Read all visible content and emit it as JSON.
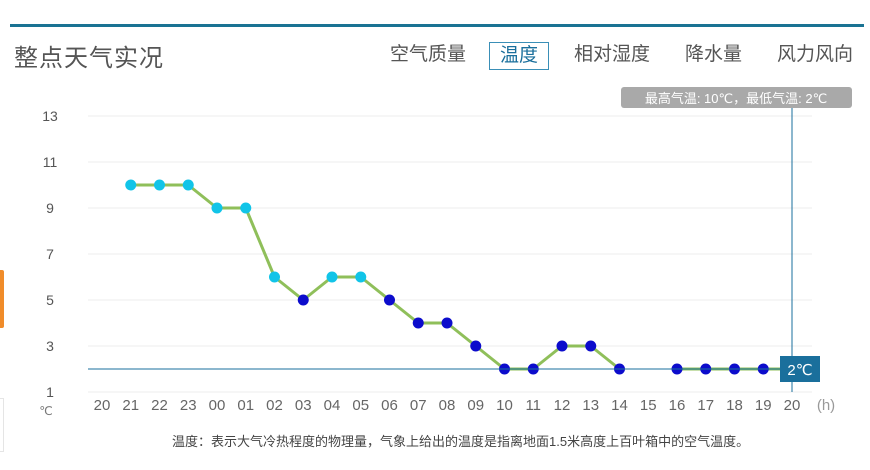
{
  "header": {
    "title": "整点天气实况",
    "tabs": [
      {
        "label": "空气质量",
        "active": false
      },
      {
        "label": "温度",
        "active": true
      },
      {
        "label": "相对湿度",
        "active": false
      },
      {
        "label": "降水量",
        "active": false
      },
      {
        "label": "风力风向",
        "active": false
      }
    ]
  },
  "chart_data": {
    "type": "line",
    "unit_label": "℃",
    "x_unit_label": "(h)",
    "categories": [
      "20",
      "21",
      "22",
      "23",
      "00",
      "01",
      "02",
      "03",
      "04",
      "05",
      "06",
      "07",
      "08",
      "09",
      "10",
      "11",
      "12",
      "13",
      "14",
      "15",
      "16",
      "17",
      "18",
      "19",
      "20"
    ],
    "series": [
      {
        "values": [
          null,
          10,
          10,
          10,
          9,
          9,
          6,
          5,
          6,
          6,
          5,
          4,
          4,
          3,
          2,
          2,
          3,
          3,
          2,
          null,
          2,
          2,
          2,
          2,
          2
        ]
      }
    ],
    "y_ticks": [
      1,
      3,
      5,
      7,
      9,
      11,
      13
    ],
    "ylim": [
      1,
      13
    ],
    "grid": true,
    "summary_label": "最高气温: 10℃，最低气温: 2℃",
    "crosshair": {
      "category_index": 24,
      "value": 2,
      "label": "2℃"
    },
    "colors": {
      "line": "#8fbf5a",
      "point_warm": "#11c4e8",
      "point_cool": "#0c0ccc",
      "crosshair": "#1a6f9c",
      "grid": "#ececec"
    }
  },
  "footer": {
    "note": "温度：表示大气冷热程度的物理量，气象上给出的温度是指离地面1.5米高度上百叶箱中的空气温度。"
  }
}
